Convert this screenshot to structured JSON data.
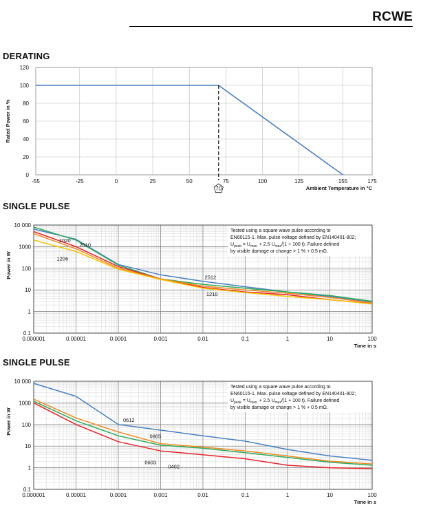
{
  "header": {
    "product": "RCWE"
  },
  "sections": [
    {
      "title": "DERATING"
    },
    {
      "title": "SINGLE PULSE"
    },
    {
      "title": "SINGLE PULSE"
    }
  ],
  "colors": {
    "blue": "#4a7fc1",
    "green": "#2faa5a",
    "red": "#e8232a",
    "orange": "#f08a24",
    "yellow": "#f5c400"
  },
  "chart_data": [
    {
      "type": "line",
      "title": "DERATING",
      "xlabel": "Ambient Temperature in °C",
      "ylabel": "Rated Power in %",
      "xlim": [
        -55,
        175
      ],
      "ylim": [
        0,
        120
      ],
      "x_ticks": [
        -55,
        -25,
        0,
        25,
        50,
        75,
        100,
        125,
        155,
        175
      ],
      "y_ticks": [
        0,
        20,
        40,
        60,
        80,
        100,
        120
      ],
      "grid": true,
      "marker": {
        "x": 70,
        "label": "70"
      },
      "series": [
        {
          "color": "#4a7fc1",
          "x": [
            -55,
            70,
            155
          ],
          "y": [
            100,
            100,
            0
          ]
        }
      ]
    },
    {
      "type": "line",
      "title": "SINGLE PULSE",
      "xlabel": "Time in s",
      "ylabel": "Power in W",
      "x_scale": "log",
      "y_scale": "log",
      "xlim": [
        1e-06,
        100
      ],
      "ylim": [
        0.1,
        10000
      ],
      "x_tick_labels": [
        "0.000001",
        "0.00001",
        "0.0001",
        "0.001",
        "0.01",
        "0.1",
        "1",
        "10",
        "100"
      ],
      "y_tick_labels": [
        "0.1",
        "1",
        "10",
        "100",
        "1000",
        "10 000"
      ],
      "grid": true,
      "note": [
        "Tested using a square wave pulse according to",
        "EN60115-1. Max. pulse voltage defined by EN140401-802;",
        "U",
        "peak",
        " = U",
        "max.",
        " + 2.5 U",
        "max",
        "/(1 + 100 t). Failure defined",
        "by visible damage or change > 1 % + 0.5 mΩ."
      ],
      "series": [
        {
          "name": "2512",
          "color": "#4a7fc1",
          "x": [
            1e-06,
            1e-05,
            0.0001,
            0.001,
            0.01,
            0.1,
            1,
            10,
            100
          ],
          "y": [
            6500,
            2200,
            150,
            50,
            25,
            14,
            8,
            5,
            2.7
          ]
        },
        {
          "name": "2010",
          "color": "#2faa5a",
          "x": [
            1e-06,
            1e-05,
            0.0001,
            0.001,
            0.01,
            0.1,
            1,
            10,
            100
          ],
          "y": [
            8000,
            2000,
            140,
            32,
            18,
            12,
            8,
            5.5,
            3
          ]
        },
        {
          "name": "1020",
          "color": "#e8232a",
          "x": [
            1e-06,
            1e-05,
            0.0001,
            0.001,
            0.01,
            0.1,
            1,
            10,
            100
          ],
          "y": [
            5000,
            1000,
            120,
            32,
            13,
            8,
            6,
            3.5,
            2.3
          ]
        },
        {
          "name": "1206",
          "color": "#f08a24",
          "x": [
            1e-06,
            1e-05,
            0.0001,
            0.001,
            0.01,
            0.1,
            1,
            10,
            100
          ],
          "y": [
            4000,
            800,
            100,
            32,
            15,
            10,
            7,
            4.5,
            2.5
          ]
        },
        {
          "name": "1210",
          "color": "#f5c400",
          "x": [
            1e-06,
            1e-05,
            0.0001,
            0.001,
            0.01,
            0.1,
            1,
            10,
            100
          ],
          "y": [
            2000,
            600,
            90,
            30,
            12,
            7.5,
            5,
            3.5,
            2.2
          ]
        }
      ],
      "curve_labels": [
        {
          "text": "1020",
          "x": 4e-06,
          "y": 1600
        },
        {
          "text": "2010",
          "x": 1.2e-05,
          "y": 1000
        },
        {
          "text": "1206",
          "x": 3.5e-06,
          "y": 230
        },
        {
          "text": "2512",
          "x": 0.011,
          "y": 32
        },
        {
          "text": "1210",
          "x": 0.012,
          "y": 5.3
        }
      ]
    },
    {
      "type": "line",
      "title": "SINGLE PULSE",
      "xlabel": "Time in s",
      "ylabel": "Power in W",
      "x_scale": "log",
      "y_scale": "log",
      "xlim": [
        1e-06,
        100
      ],
      "ylim": [
        0.1,
        10000
      ],
      "x_tick_labels": [
        "0.000001",
        "0.00001",
        "0.0001",
        "0.001",
        "0.01",
        "0.1",
        "1",
        "10",
        "100"
      ],
      "y_tick_labels": [
        "0.1",
        "1",
        "10",
        "100",
        "1000",
        "10 000"
      ],
      "grid": true,
      "note": [
        "Tested using a square wave pulse according to",
        "EN60115-1. Max. pulse voltage defined by EN140401-802;",
        "U",
        "peak",
        " = U",
        "max.",
        " + 2.5 U",
        "max",
        "/(1 + 100 t). Failure defined",
        "by visible damage or change > 1 % + 0.5 mΩ."
      ],
      "series": [
        {
          "name": "0612",
          "color": "#4a7fc1",
          "x": [
            1e-06,
            1e-05,
            0.0001,
            0.001,
            0.01,
            0.1,
            1,
            10,
            100
          ],
          "y": [
            8000,
            2000,
            100,
            55,
            30,
            17,
            7,
            3.5,
            2.2
          ]
        },
        {
          "name": "0805",
          "color": "#f08a24",
          "x": [
            1e-06,
            1e-05,
            0.0001,
            0.001,
            0.01,
            0.1,
            1,
            10,
            100
          ],
          "y": [
            1500,
            200,
            45,
            13,
            9,
            6,
            3.5,
            2,
            1.5
          ]
        },
        {
          "name": "0603",
          "color": "#2faa5a",
          "x": [
            1e-06,
            1e-05,
            0.0001,
            0.001,
            0.01,
            0.1,
            1,
            10,
            100
          ],
          "y": [
            1200,
            150,
            30,
            11,
            8,
            5,
            3,
            1.8,
            1.3
          ]
        },
        {
          "name": "0402",
          "color": "#e8232a",
          "x": [
            1e-06,
            1e-05,
            0.0001,
            0.001,
            0.01,
            0.1,
            1,
            10,
            100
          ],
          "y": [
            1000,
            100,
            16,
            6,
            4,
            2.6,
            1.3,
            1,
            0.9
          ]
        }
      ],
      "curve_labels": [
        {
          "text": "0612",
          "x": 0.00013,
          "y": 130
        },
        {
          "text": "0805",
          "x": 0.00055,
          "y": 24
        },
        {
          "text": "0603",
          "x": 0.00042,
          "y": 1.45
        },
        {
          "text": "0402",
          "x": 0.0015,
          "y": 0.95
        }
      ]
    }
  ]
}
